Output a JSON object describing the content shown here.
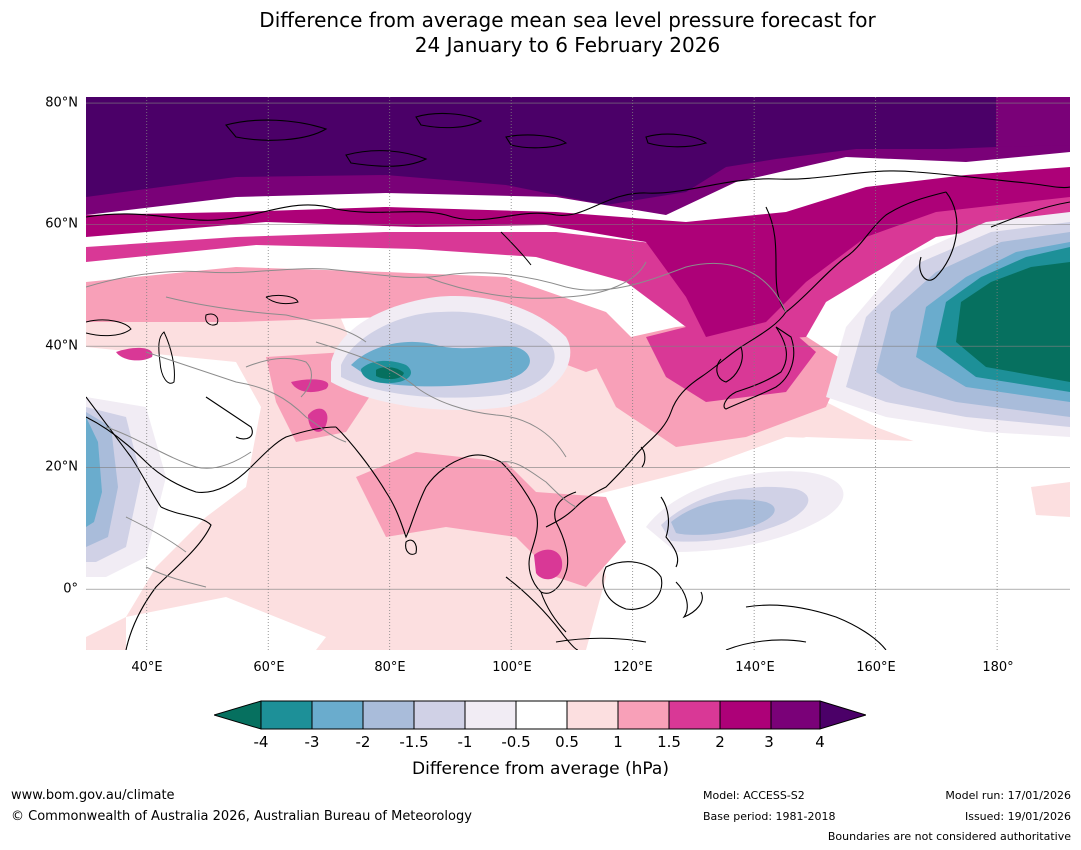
{
  "title": {
    "line1": "Difference from average mean sea level pressure forecast for",
    "line2": "24 January to 6 February 2026"
  },
  "map": {
    "latitude_labels": [
      "80°N",
      "60°N",
      "40°N",
      "20°N",
      "0°"
    ],
    "longitude_labels": [
      "40°E",
      "60°E",
      "80°E",
      "100°E",
      "120°E",
      "140°E",
      "160°E",
      "180°"
    ],
    "latitude_values": [
      80,
      60,
      40,
      20,
      0
    ],
    "longitude_values": [
      40,
      60,
      80,
      100,
      120,
      140,
      160,
      180
    ],
    "extent": {
      "lon_min": 30,
      "lon_max": 192,
      "lat_min": -10,
      "lat_max": 81
    }
  },
  "legend": {
    "title": "Difference from average (hPa)",
    "ticks": [
      "-4",
      "-3",
      "-2",
      "-1.5",
      "-1",
      "-0.5",
      "0.5",
      "1",
      "1.5",
      "2",
      "3",
      "4"
    ],
    "colors": [
      "#06705f",
      "#1d9098",
      "#6aaccd",
      "#a9bcda",
      "#d0d1e6",
      "#f1ecf4",
      "#ffffff",
      "#fcdfe0",
      "#f8a0b8",
      "#d93896",
      "#ad0178",
      "#7a0178",
      "#4b0068"
    ]
  },
  "footer": {
    "url": "www.bom.gov.au/climate",
    "copyright": "© Commonwealth of Australia 2026, Australian Bureau of Meteorology",
    "model": "Model: ACCESS-S2",
    "base_period": "Base period: 1981-2018",
    "model_run": "Model run: 17/01/2026",
    "issued": "Issued: 19/01/2026",
    "boundaries": "Boundaries are not considered authoritative"
  }
}
